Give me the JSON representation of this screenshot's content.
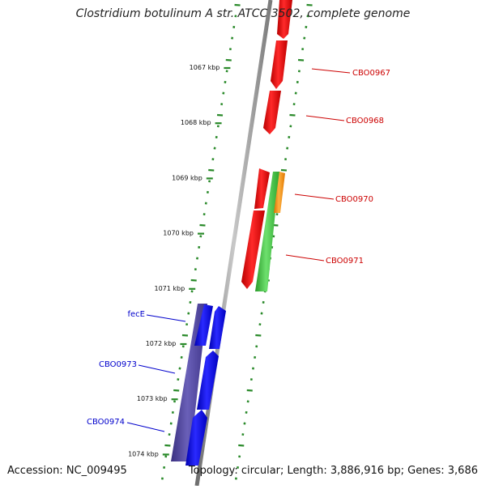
{
  "title": "Clostridium botulinum A str. ATCC 3502, complete genome",
  "footer": {
    "accession": "Accession: NC_009495",
    "summary": "Topology: circular; Length: 3,886,916 bp; Genes: 3,686"
  },
  "colors": {
    "backbone": "#8c8c8c",
    "tick": "#2a8a2a",
    "gene_red": "#e60000",
    "gene_green": "#3ec43e",
    "gene_orange": "#ff8c00",
    "gene_blue": "#0000e6",
    "gene_purple": "#4a3f99",
    "label_red": "#cc0000",
    "label_blue": "#0000cc"
  },
  "kbp_ticks": [
    "1067 kbp",
    "1068 kbp",
    "1069 kbp",
    "1070 kbp",
    "1071 kbp",
    "1072 kbp",
    "1073 kbp",
    "1074 kbp"
  ],
  "gene_labels": [
    {
      "name": "CBO0967",
      "color": "red"
    },
    {
      "name": "CBO0968",
      "color": "red"
    },
    {
      "name": "CBO0970",
      "color": "red"
    },
    {
      "name": "CBO0971",
      "color": "red"
    },
    {
      "name": "fecE",
      "color": "blue"
    },
    {
      "name": "CBO0973",
      "color": "blue"
    },
    {
      "name": "CBO0974",
      "color": "blue"
    }
  ]
}
